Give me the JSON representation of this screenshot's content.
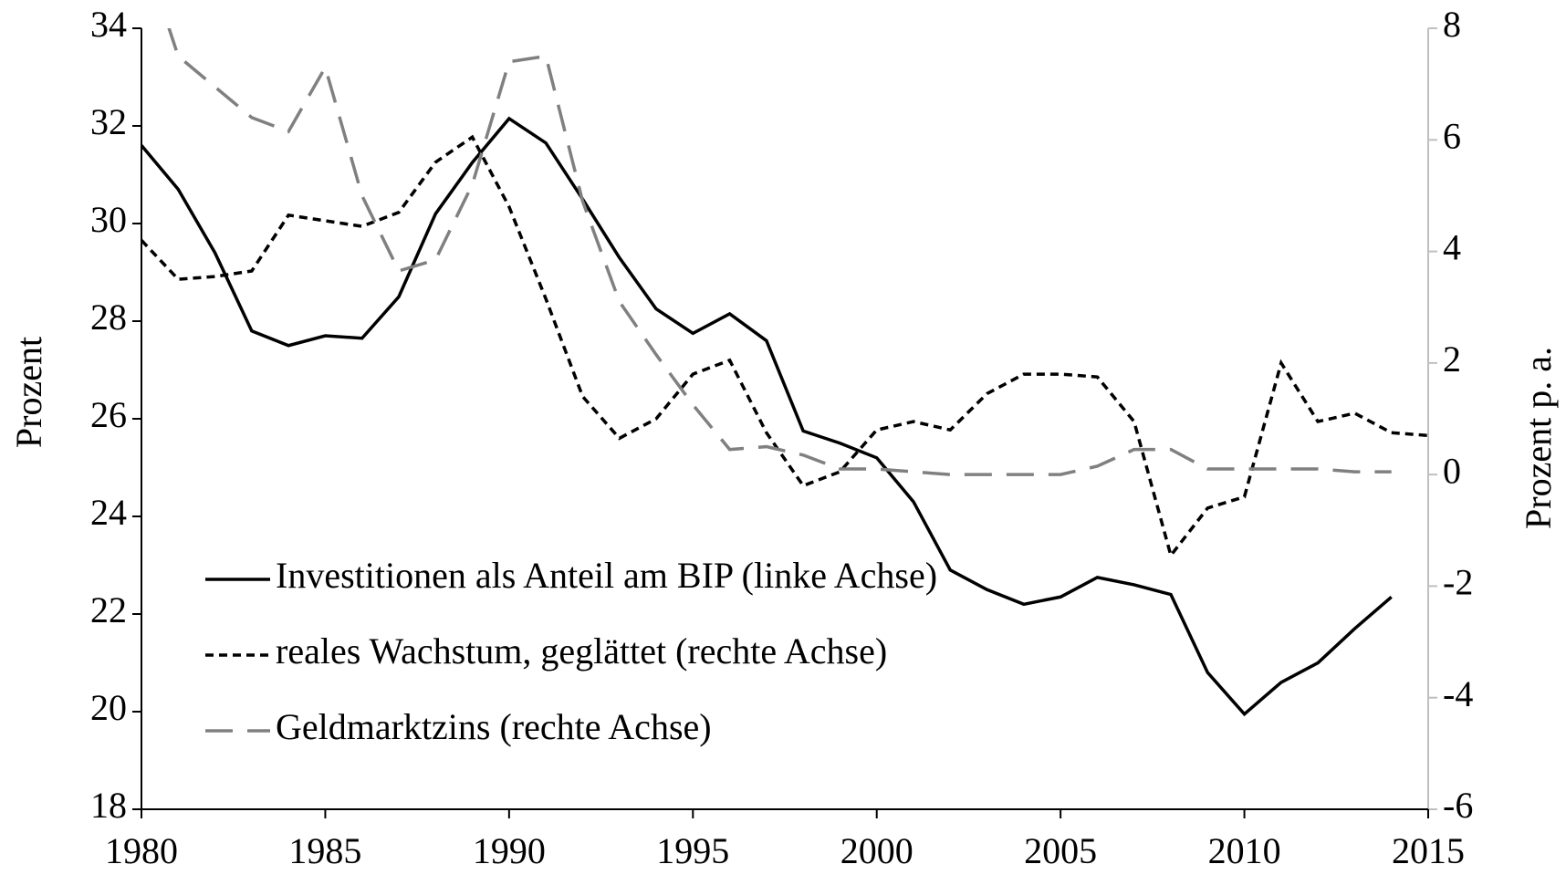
{
  "chart_data": {
    "type": "line",
    "x": [
      1980,
      1981,
      1982,
      1983,
      1984,
      1985,
      1986,
      1987,
      1988,
      1989,
      1990,
      1991,
      1992,
      1993,
      1994,
      1995,
      1996,
      1997,
      1998,
      1999,
      2000,
      2001,
      2002,
      2003,
      2004,
      2005,
      2006,
      2007,
      2008,
      2009,
      2010,
      2011,
      2012,
      2013,
      2014,
      2015
    ],
    "ylabel": "Prozent",
    "y2label": "Prozent p. a.",
    "series": [
      {
        "name": "Investitionen als Anteil am BIP (linke Achse)",
        "color": "#000000",
        "linestyle": "solid",
        "values": [
          31.6,
          30.7,
          29.4,
          27.8,
          27.5,
          27.7,
          27.65,
          28.5,
          30.2,
          31.25,
          32.15,
          31.65,
          30.5,
          29.3,
          28.25,
          27.75,
          28.15,
          27.6,
          25.75,
          25.5,
          25.2,
          24.3,
          22.9,
          22.5,
          22.2,
          22.35,
          22.75,
          22.6,
          22.4,
          20.8,
          19.95,
          20.6,
          21.0,
          21.7,
          22.35,
          null
        ]
      },
      {
        "name": "reales Wachstum, geglättet (rechte Achse)",
        "color": "#000000",
        "linestyle": "dotted",
        "axis": "y2",
        "values": [
          4.2,
          3.5,
          3.55,
          3.65,
          4.65,
          4.55,
          4.45,
          4.7,
          5.6,
          6.05,
          4.8,
          3.15,
          1.4,
          0.65,
          1.0,
          1.8,
          2.05,
          0.75,
          -0.2,
          0.05,
          0.8,
          0.95,
          0.8,
          1.45,
          1.8,
          1.8,
          1.75,
          0.95,
          -1.45,
          -0.6,
          -0.4,
          2.0,
          0.95,
          1.1,
          0.75,
          0.7
        ]
      },
      {
        "name": "Geldmarktzins (rechte Achse)",
        "color": "#808080",
        "linestyle": "dashed",
        "axis": "y2",
        "values": [
          9.5,
          7.5,
          6.95,
          6.4,
          6.15,
          7.3,
          5.0,
          3.65,
          3.85,
          5.2,
          7.4,
          7.5,
          4.9,
          3.1,
          2.15,
          1.25,
          0.45,
          0.5,
          0.35,
          0.1,
          0.1,
          0.05,
          0,
          0,
          0,
          0,
          0.15,
          0.45,
          0.45,
          0.1,
          0.1,
          0.1,
          0.1,
          0.05,
          0.05,
          null
        ]
      }
    ],
    "xlim": [
      1980,
      2015
    ],
    "xticks": [
      1980,
      1985,
      1990,
      1995,
      2000,
      2005,
      2010,
      2015
    ],
    "ylim": [
      18,
      34
    ],
    "yticks": [
      18,
      20,
      22,
      24,
      26,
      28,
      30,
      32,
      34
    ],
    "y2lim": [
      -6,
      8
    ],
    "y2ticks": [
      -6,
      -4,
      -2,
      0,
      2,
      4,
      6,
      8
    ],
    "grid": false,
    "legend": "lower left"
  }
}
